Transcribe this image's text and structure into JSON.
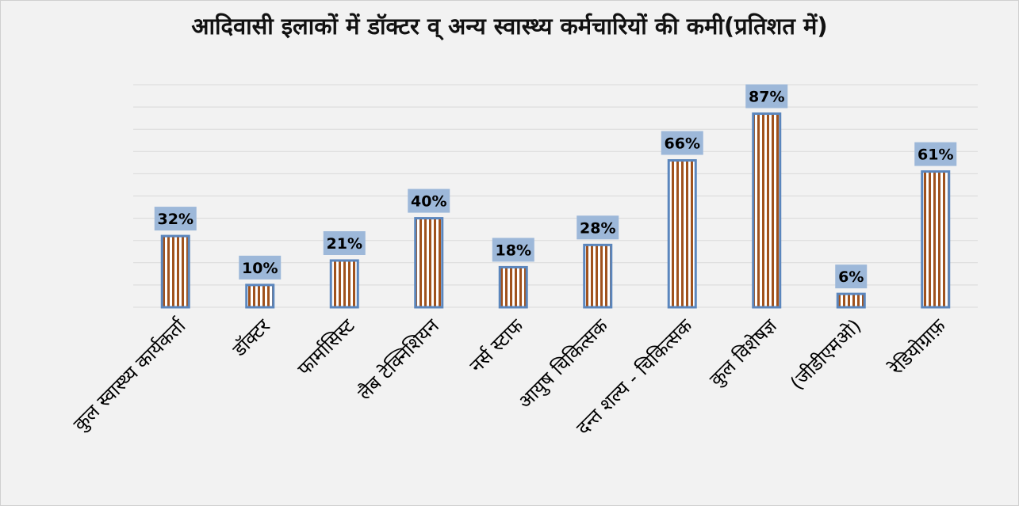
{
  "chart_data": {
    "type": "bar",
    "title": "आदिवासी इलाकों में डॉक्टर व् अन्य स्वास्थ्य कर्मचारियों की कमी(प्रतिशत में)",
    "xlabel": "",
    "ylabel": "",
    "categories": [
      "कुल स्वास्थ्य कार्यकर्ता",
      "डॉक्टर",
      "फार्मासिस्ट",
      "लैब टेक्निशियन",
      "नर्स स्टाफ",
      "आयुष चिकित्सक",
      "दन्त शल्य - चिकित्सक",
      "कुल विशेषज्ञ",
      "(जीडीएमओ)",
      "रेडियोग्राफ़"
    ],
    "values": [
      32,
      10,
      21,
      40,
      18,
      28,
      66,
      87,
      6,
      61
    ],
    "data_labels": [
      "32%",
      "10%",
      "21%",
      "40%",
      "18%",
      "28%",
      "66%",
      "87%",
      "6%",
      "61%"
    ],
    "ylim": [
      0,
      100
    ],
    "grid": true,
    "colors": {
      "bar_stripe": "#a0521d",
      "bar_fill": "#ffffff",
      "bar_border": "#5b86bd",
      "label_background": "#9db8d9",
      "gridline": "#d9d9d9",
      "background": "#f2f2f2"
    }
  }
}
